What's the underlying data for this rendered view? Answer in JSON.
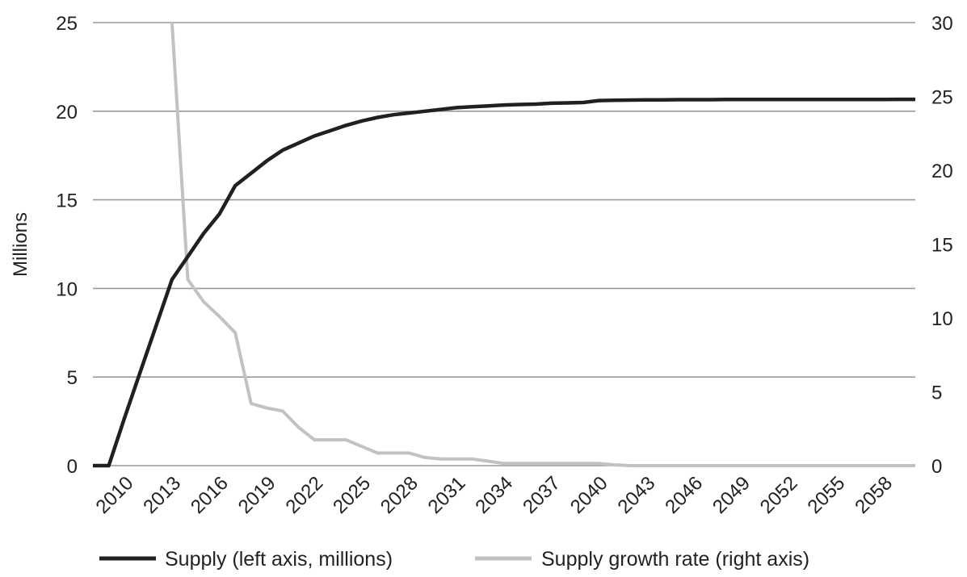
{
  "chart_data": {
    "type": "line",
    "title": "",
    "xlabel": "",
    "ylabel": "Millions",
    "ylim": [
      0,
      25
    ],
    "y2lim": [
      0,
      30
    ],
    "yticks": [
      "0",
      "5",
      "10",
      "15",
      "20",
      "25"
    ],
    "y2ticks": [
      "0",
      "5",
      "10",
      "15",
      "20",
      "25",
      "30"
    ],
    "x_tick_labels": [
      "2010",
      "2013",
      "2016",
      "2019",
      "2022",
      "2025",
      "2028",
      "2031",
      "2034",
      "2037",
      "2040",
      "2043",
      "2046",
      "2049",
      "2052",
      "2055",
      "2058"
    ],
    "grid": true,
    "legend_position": "bottom",
    "colors": {
      "supply": "#231f20",
      "growth": "#c2c2c2",
      "grid": "#9a9a9a"
    },
    "x": [
      2008,
      2009,
      2010,
      2011,
      2012,
      2013,
      2014,
      2015,
      2016,
      2017,
      2018,
      2019,
      2020,
      2021,
      2022,
      2023,
      2024,
      2025,
      2026,
      2027,
      2028,
      2029,
      2030,
      2031,
      2032,
      2033,
      2034,
      2035,
      2036,
      2037,
      2038,
      2039,
      2040,
      2041,
      2042,
      2043,
      2044,
      2045,
      2046,
      2047,
      2048,
      2049,
      2050,
      2051,
      2052,
      2053,
      2054,
      2055,
      2056,
      2057,
      2058,
      2059,
      2060
    ],
    "series": [
      {
        "name": "Supply (left axis, millions)",
        "axis": "left",
        "values": [
          0,
          0,
          2.7,
          5.3,
          7.9,
          10.5,
          11.8,
          13.1,
          14.2,
          15.8,
          16.5,
          17.2,
          17.8,
          18.2,
          18.6,
          18.9,
          19.2,
          19.45,
          19.65,
          19.8,
          19.9,
          20.0,
          20.1,
          20.2,
          20.25,
          20.3,
          20.35,
          20.38,
          20.4,
          20.45,
          20.47,
          20.49,
          20.6,
          20.62,
          20.63,
          20.64,
          20.64,
          20.65,
          20.65,
          20.65,
          20.66,
          20.66,
          20.66,
          20.66,
          20.66,
          20.66,
          20.66,
          20.66,
          20.66,
          20.66,
          20.66,
          20.67,
          20.67
        ]
      },
      {
        "name": "Supply growth rate (right axis)",
        "axis": "right",
        "start_index": 5,
        "values": [
          null,
          null,
          null,
          null,
          null,
          30,
          12.6,
          11.1,
          10.1,
          9.0,
          4.2,
          3.9,
          3.7,
          2.6,
          1.75,
          1.75,
          1.75,
          1.3,
          0.85,
          0.85,
          0.85,
          0.55,
          0.45,
          0.45,
          0.45,
          0.3,
          0.15,
          0.15,
          0.15,
          0.15,
          0.15,
          0.15,
          0.15,
          0.05,
          0,
          0,
          0,
          0,
          0,
          0,
          0,
          0,
          0,
          0,
          0,
          0,
          0,
          0,
          0,
          0,
          0,
          0,
          0
        ]
      }
    ]
  }
}
